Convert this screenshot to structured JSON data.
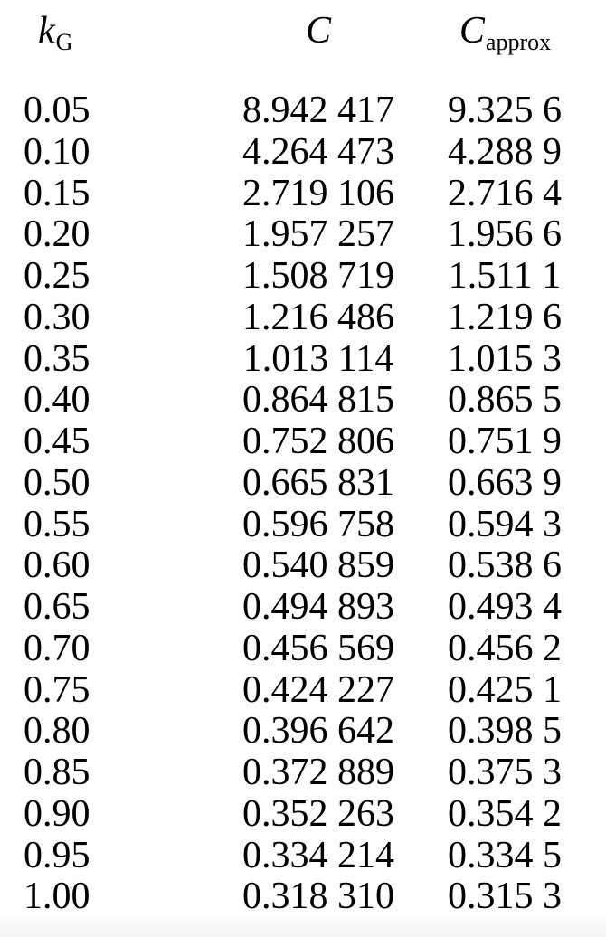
{
  "table": {
    "columns": [
      {
        "id": "kG",
        "label_main": "k",
        "label_sub": "G"
      },
      {
        "id": "C",
        "label_main": "C",
        "label_sub": ""
      },
      {
        "id": "Capprox",
        "label_main": "C",
        "label_sub": "approx"
      }
    ],
    "rows": [
      {
        "k": "0.05",
        "c": "8.942 417",
        "capprox": "9.325 6"
      },
      {
        "k": "0.10",
        "c": "4.264 473",
        "capprox": "4.288 9"
      },
      {
        "k": "0.15",
        "c": "2.719 106",
        "capprox": "2.716 4"
      },
      {
        "k": "0.20",
        "c": "1.957 257",
        "capprox": "1.956 6"
      },
      {
        "k": "0.25",
        "c": "1.508 719",
        "capprox": "1.511 1"
      },
      {
        "k": "0.30",
        "c": "1.216 486",
        "capprox": "1.219 6"
      },
      {
        "k": "0.35",
        "c": "1.013 114",
        "capprox": "1.015 3"
      },
      {
        "k": "0.40",
        "c": "0.864 815",
        "capprox": "0.865 5"
      },
      {
        "k": "0.45",
        "c": "0.752 806",
        "capprox": "0.751 9"
      },
      {
        "k": "0.50",
        "c": "0.665 831",
        "capprox": "0.663 9"
      },
      {
        "k": "0.55",
        "c": "0.596 758",
        "capprox": "0.594 3"
      },
      {
        "k": "0.60",
        "c": "0.540 859",
        "capprox": "0.538 6"
      },
      {
        "k": "0.65",
        "c": "0.494 893",
        "capprox": "0.493 4"
      },
      {
        "k": "0.70",
        "c": "0.456 569",
        "capprox": "0.456 2"
      },
      {
        "k": "0.75",
        "c": "0.424 227",
        "capprox": "0.425 1"
      },
      {
        "k": "0.80",
        "c": "0.396 642",
        "capprox": "0.398 5"
      },
      {
        "k": "0.85",
        "c": "0.372 889",
        "capprox": "0.375 3"
      },
      {
        "k": "0.90",
        "c": "0.352 263",
        "capprox": "0.354 2"
      },
      {
        "k": "0.95",
        "c": "0.334 214",
        "capprox": "0.334 5"
      },
      {
        "k": "1.00",
        "c": "0.318 310",
        "capprox": "0.315 3"
      }
    ]
  },
  "chart_data": {
    "type": "table",
    "columns": [
      "k_G",
      "C",
      "C_approx"
    ],
    "rows": [
      [
        0.05,
        8.942417,
        9.3256
      ],
      [
        0.1,
        4.264473,
        4.2889
      ],
      [
        0.15,
        2.719106,
        2.7164
      ],
      [
        0.2,
        1.957257,
        1.9566
      ],
      [
        0.25,
        1.508719,
        1.5111
      ],
      [
        0.3,
        1.216486,
        1.2196
      ],
      [
        0.35,
        1.013114,
        1.0153
      ],
      [
        0.4,
        0.864815,
        0.8655
      ],
      [
        0.45,
        0.752806,
        0.7519
      ],
      [
        0.5,
        0.665831,
        0.6639
      ],
      [
        0.55,
        0.596758,
        0.5943
      ],
      [
        0.6,
        0.540859,
        0.5386
      ],
      [
        0.65,
        0.494893,
        0.4934
      ],
      [
        0.7,
        0.456569,
        0.4562
      ],
      [
        0.75,
        0.424227,
        0.4251
      ],
      [
        0.8,
        0.396642,
        0.3985
      ],
      [
        0.85,
        0.372889,
        0.3753
      ],
      [
        0.9,
        0.352263,
        0.3542
      ],
      [
        0.95,
        0.334214,
        0.3345
      ],
      [
        1.0,
        0.31831,
        0.3153
      ]
    ]
  },
  "colors": {
    "text": "#000000",
    "background": "#ffffff",
    "page_edge": "#f4f4f5"
  }
}
